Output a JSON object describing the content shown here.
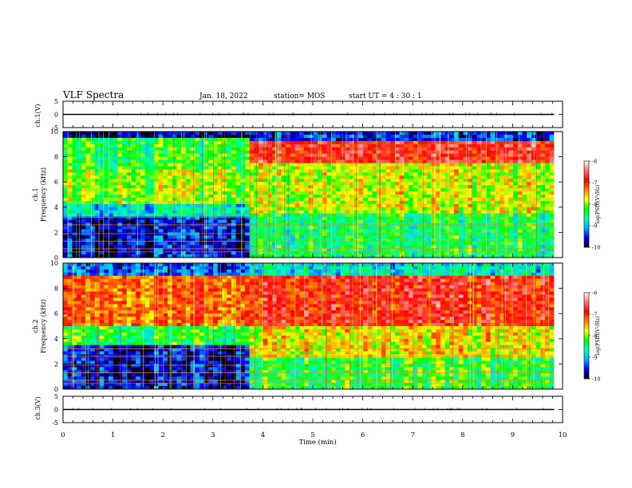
{
  "header": {
    "title": "VLF Spectra",
    "date": "Jan. 18, 2022",
    "station": "station= MOS",
    "start": "start  UT =   4 : 30 : 1"
  },
  "colorscale": {
    "label": "log(PSD)(V²/Hz)",
    "ticks": [
      "-6",
      "-7",
      "-8",
      "-9",
      "-10"
    ],
    "range": [
      -10,
      -6
    ],
    "colors": [
      "#000000",
      "#0000ff",
      "#00b4ff",
      "#00ffb4",
      "#00ff00",
      "#ffff00",
      "#ff8000",
      "#ff0000",
      "#ff7070",
      "#ffffff"
    ]
  },
  "chart_data": [
    {
      "type": "line",
      "panel": "ch1-waveform",
      "ylabel": "ch.1(V)",
      "ylim": [
        -5,
        5
      ],
      "yticks": [
        "5",
        "0",
        "-5"
      ],
      "xlim": [
        0,
        10
      ],
      "series": [
        {
          "x": [
            0,
            9.83
          ],
          "values": [
            0,
            0
          ]
        }
      ]
    },
    {
      "type": "heatmap",
      "panel": "ch1-spectrogram",
      "ylabel": "ch.1",
      "ylabel2": "Frequency (kHz)",
      "ylim": [
        0,
        10
      ],
      "yticks": [
        "0",
        "2",
        "4",
        "6",
        "8",
        "10"
      ],
      "xlim": [
        0,
        10
      ],
      "data_end_min": 9.83,
      "transition_min": 3.75,
      "before_transition": {
        "high_band_log_psd": -8.0,
        "low_band_log_psd": -9.6
      },
      "after_transition": {
        "band_8_9_khz_log_psd": -6.8,
        "mid_band_log_psd": -7.8,
        "low_band_log_psd": -8.4
      },
      "clim": [
        -10,
        -6
      ]
    },
    {
      "type": "heatmap",
      "panel": "ch2-spectrogram",
      "ylabel": "ch.2",
      "ylabel2": "Frequency (kHz)",
      "ylim": [
        0,
        10
      ],
      "yticks": [
        "0",
        "2",
        "4",
        "6",
        "8",
        "10"
      ],
      "xlim": [
        0,
        10
      ],
      "data_end_min": 9.83,
      "transition_min": 3.75,
      "before_transition": {
        "band_5_8_khz_log_psd": -7.2,
        "low_band_log_psd": -9.6
      },
      "after_transition": {
        "band_5_8_khz_log_psd": -6.9,
        "mid_band_log_psd": -7.7,
        "low_band_log_psd": -8.3
      },
      "clim": [
        -10,
        -6
      ]
    },
    {
      "type": "line",
      "panel": "ch3-waveform",
      "ylabel": "ch.3(V)",
      "ylim": [
        -5,
        5
      ],
      "yticks": [
        "5",
        "0",
        "-5"
      ],
      "xlim": [
        0,
        10
      ],
      "xlabel": "Time  (min)",
      "xticks": [
        "0",
        "1",
        "2",
        "3",
        "4",
        "5",
        "6",
        "7",
        "8",
        "9",
        "10"
      ],
      "series": [
        {
          "x": [
            0,
            9.83
          ],
          "values": [
            0,
            0
          ]
        }
      ]
    }
  ]
}
